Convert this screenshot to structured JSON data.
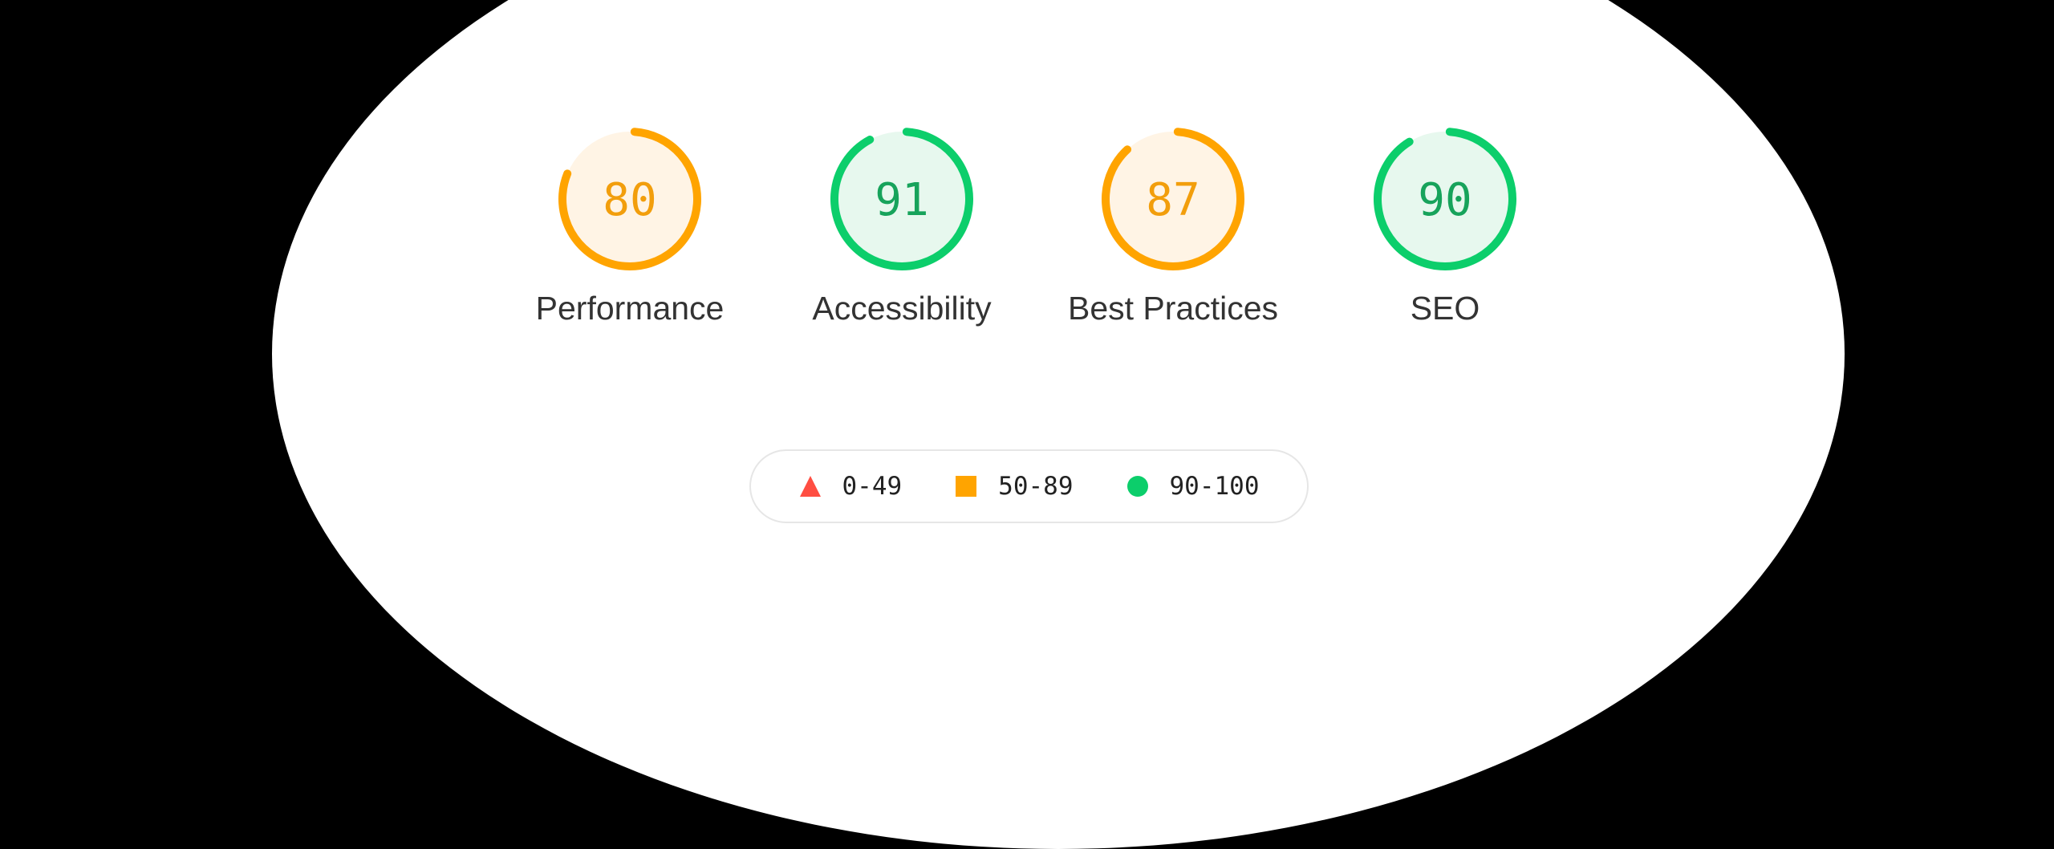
{
  "gauges": [
    {
      "label": "Performance",
      "score": "80",
      "value": 80,
      "color": "#ffa400",
      "bg": "#fff4e5",
      "text": "#f29e0c"
    },
    {
      "label": "Accessibility",
      "score": "91",
      "value": 91,
      "color": "#0cce6b",
      "bg": "#e7f8ee",
      "text": "#17a35b"
    },
    {
      "label": "Best Practices",
      "score": "87",
      "value": 87,
      "color": "#ffa400",
      "bg": "#fff4e5",
      "text": "#f29e0c"
    },
    {
      "label": "SEO",
      "score": "90",
      "value": 90,
      "color": "#0cce6b",
      "bg": "#e7f8ee",
      "text": "#17a35b"
    }
  ],
  "legend": [
    {
      "range": "0-49",
      "shape": "triangle",
      "color": "#ff4e42"
    },
    {
      "range": "50-89",
      "shape": "square",
      "color": "#ffa400"
    },
    {
      "range": "90-100",
      "shape": "circle",
      "color": "#0cce6b"
    }
  ]
}
